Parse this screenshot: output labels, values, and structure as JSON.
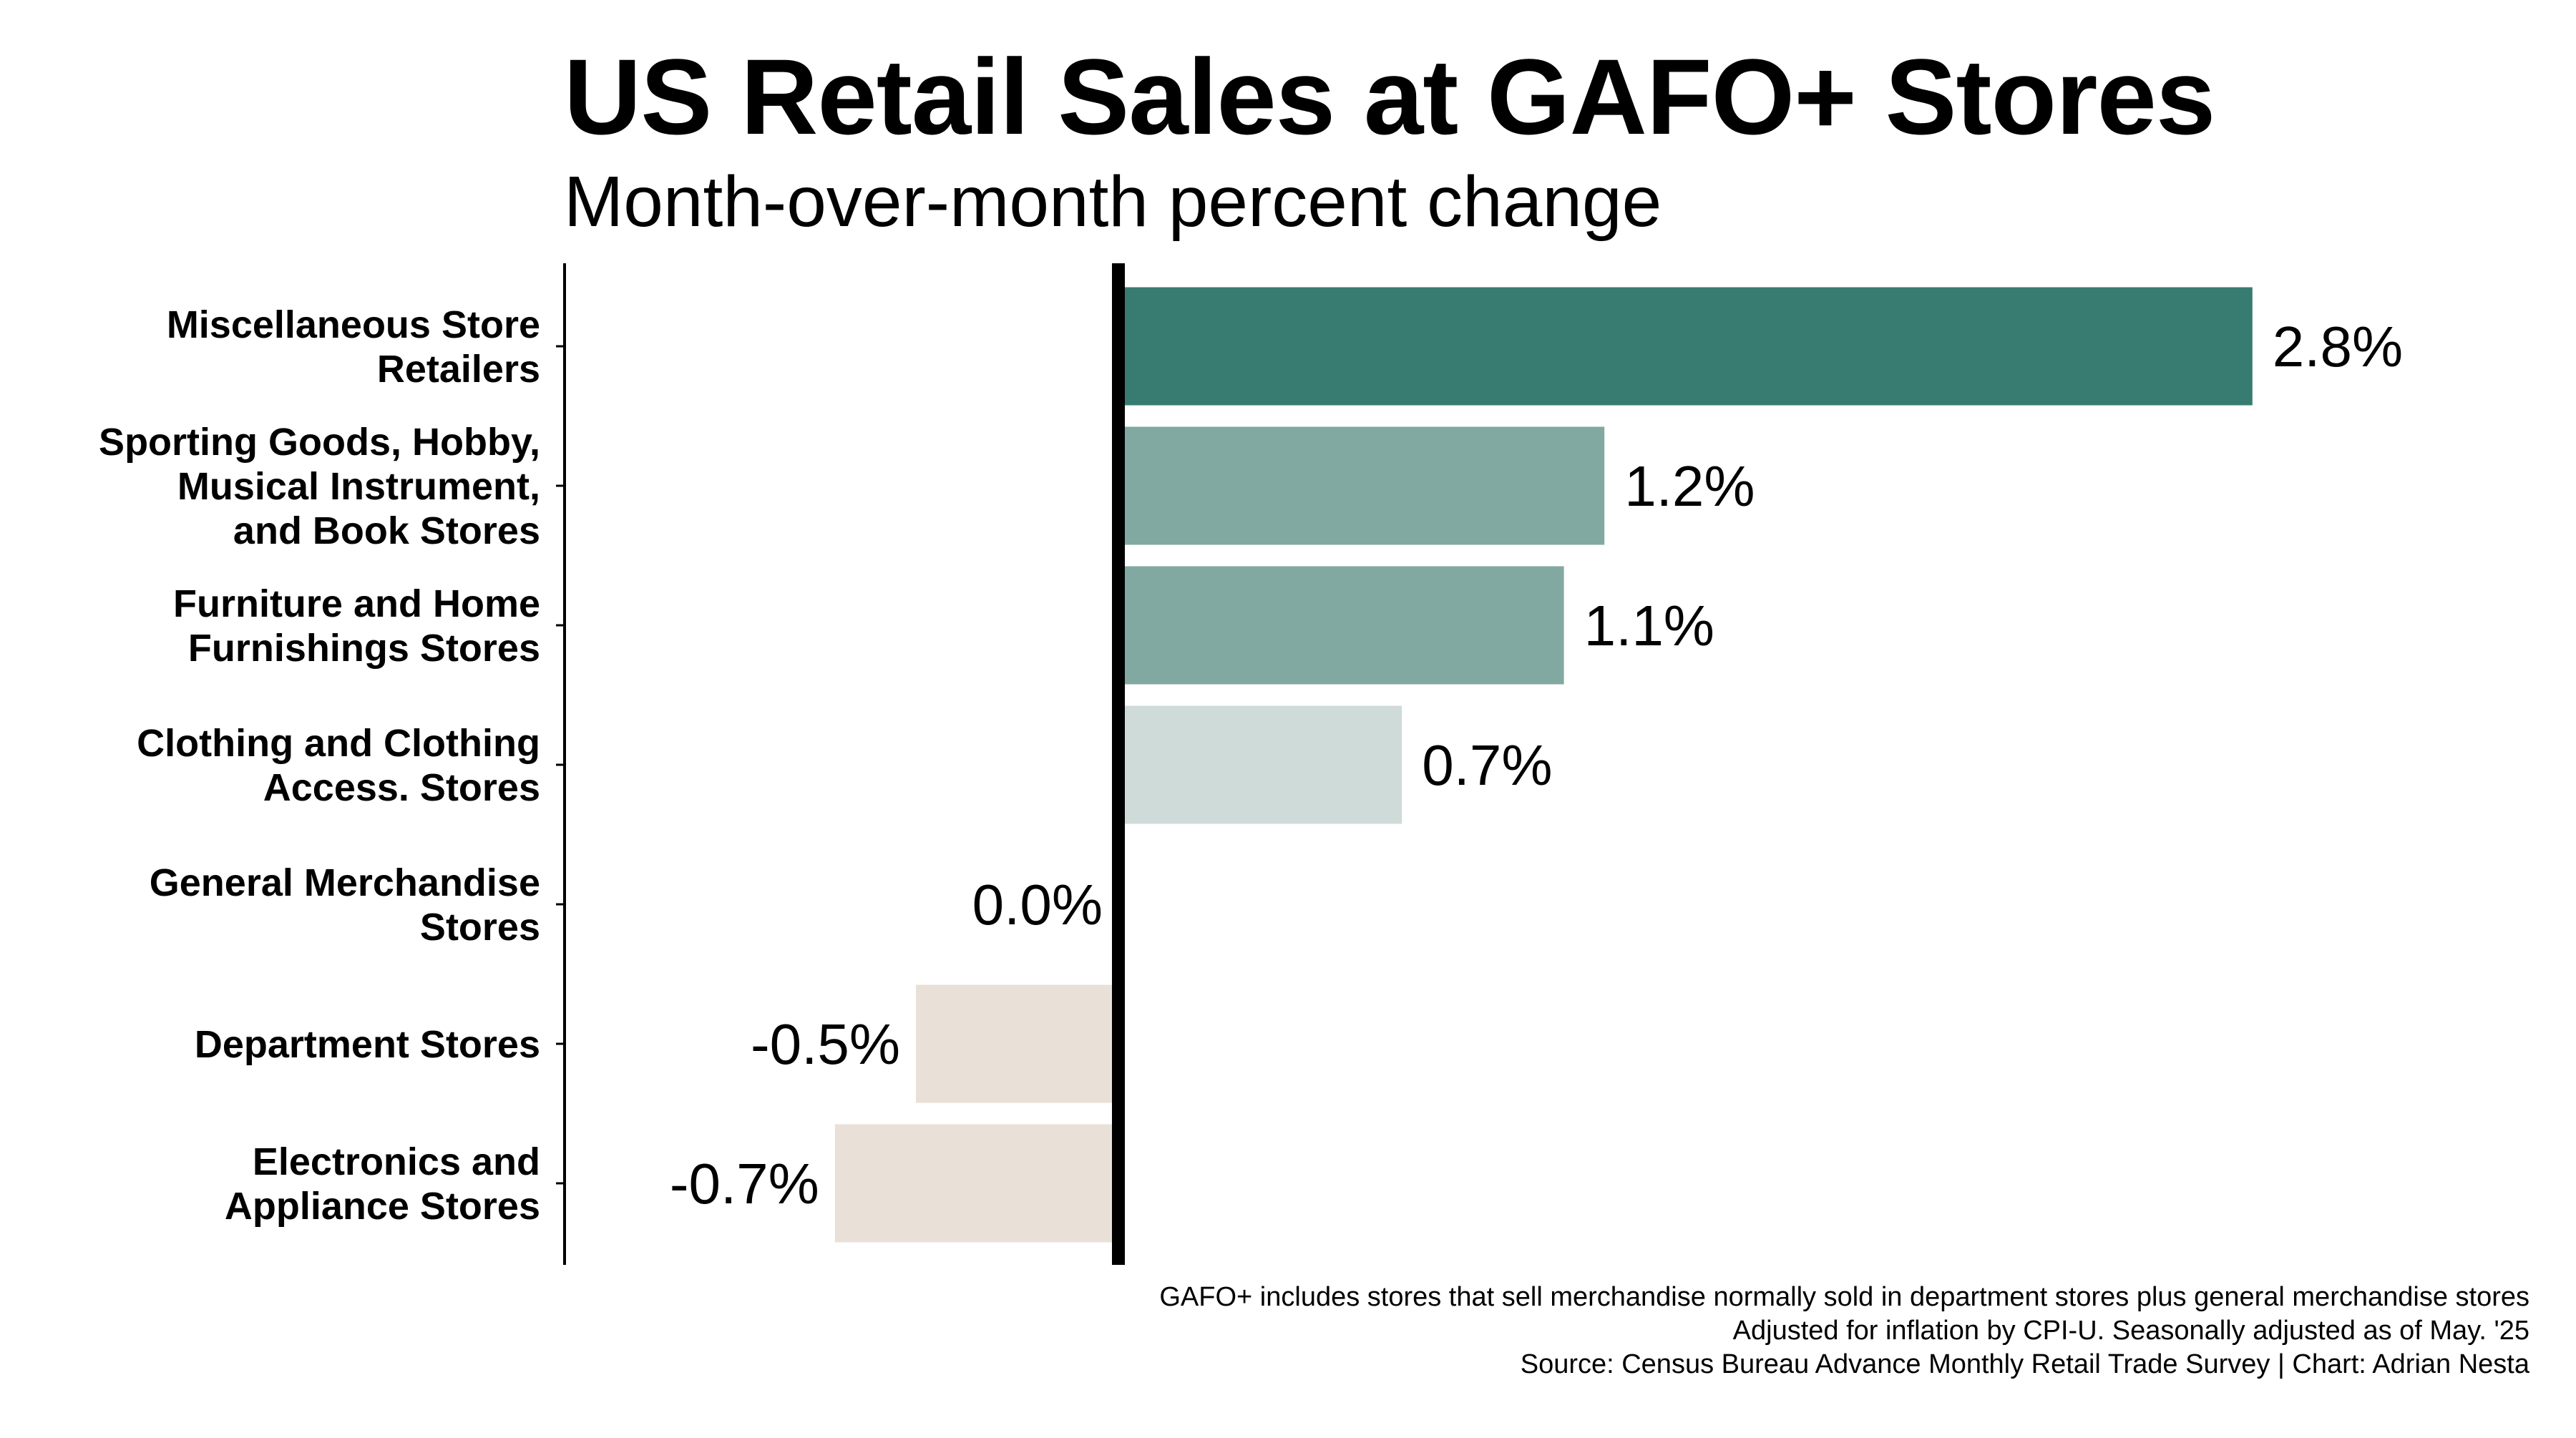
{
  "title": "US Retail Sales at GAFO+ Stores",
  "subtitle": "Month-over-month percent change",
  "chart_data": {
    "type": "bar",
    "orientation": "horizontal",
    "title": "US Retail Sales at GAFO+ Stores",
    "subtitle": "Month-over-month percent change",
    "categories": [
      [
        "Miscellaneous Store",
        "Retailers"
      ],
      [
        "Sporting Goods, Hobby,",
        "Musical Instrument,",
        "and Book Stores"
      ],
      [
        "Furniture and Home",
        "Furnishings Stores"
      ],
      [
        "Clothing and Clothing",
        "Access. Stores"
      ],
      [
        "General Merchandise",
        "Stores"
      ],
      [
        "Department Stores"
      ],
      [
        "Electronics and",
        "Appliance Stores"
      ]
    ],
    "values": [
      2.8,
      1.2,
      1.1,
      0.7,
      0.0,
      -0.5,
      -0.7
    ],
    "labels": [
      "2.8%",
      "1.2%",
      "1.1%",
      "0.7%",
      "0.0%",
      "-0.5%",
      "-0.7%"
    ],
    "colors": [
      "#387b71",
      "#82a8a2",
      "#82a8a2",
      "#cfdbd8",
      "#cfdbd8",
      "#e9e0d8",
      "#e9e0d8"
    ],
    "xlabel": "",
    "ylabel": "",
    "grid": false,
    "legend": "none",
    "zero_line_color": "#000000"
  },
  "caption": {
    "line1": "GAFO+ includes stores that sell merchandise normally sold in department stores plus general merchandise stores",
    "line2": "Adjusted for inflation by CPI-U. Seasonally adjusted as of May. '25",
    "line3": "Source: Census Bureau Advance Monthly Retail Trade Survey | Chart: Adrian Nesta"
  }
}
